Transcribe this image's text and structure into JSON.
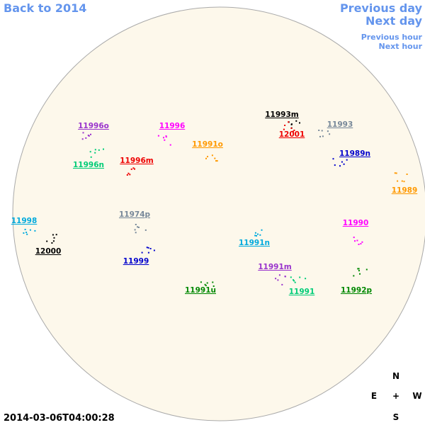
{
  "nav": {
    "back": "Back to 2014",
    "previous_day": "Previous day",
    "next_day": "Next day",
    "previous_hour": "Previous hour",
    "next_hour": "Next hour"
  },
  "regions": [
    {
      "label": "11996o",
      "color": "#9933cc"
    },
    {
      "label": "11996",
      "color": "#ff00ff"
    },
    {
      "label": "11996n",
      "color": "#00cc77"
    },
    {
      "label": "11996m",
      "color": "#ee0000"
    },
    {
      "label": "11991o",
      "color": "#ff9900"
    },
    {
      "label": "11993m",
      "color": "#000000"
    },
    {
      "label": "12001",
      "color": "#ee0000"
    },
    {
      "label": "11993",
      "color": "#778899"
    },
    {
      "label": "11989n",
      "color": "#0000cc"
    },
    {
      "label": "11989",
      "color": "#ff9900"
    },
    {
      "label": "11998",
      "color": "#00aadd"
    },
    {
      "label": "12000",
      "color": "#000000"
    },
    {
      "label": "11974p",
      "color": "#778899"
    },
    {
      "label": "11999",
      "color": "#0000cc"
    },
    {
      "label": "11991n",
      "color": "#00aadd"
    },
    {
      "label": "11990",
      "color": "#ff00ff"
    },
    {
      "label": "11991m",
      "color": "#9933cc"
    },
    {
      "label": "11991",
      "color": "#00cc77"
    },
    {
      "label": "11991u",
      "color": "#008800"
    },
    {
      "label": "11992p",
      "color": "#008800"
    }
  ],
  "compass": {
    "north": "N",
    "east": "E",
    "center": "+",
    "west": "W",
    "south": "S"
  },
  "timestamp": "2014-03-06T04:00:28"
}
